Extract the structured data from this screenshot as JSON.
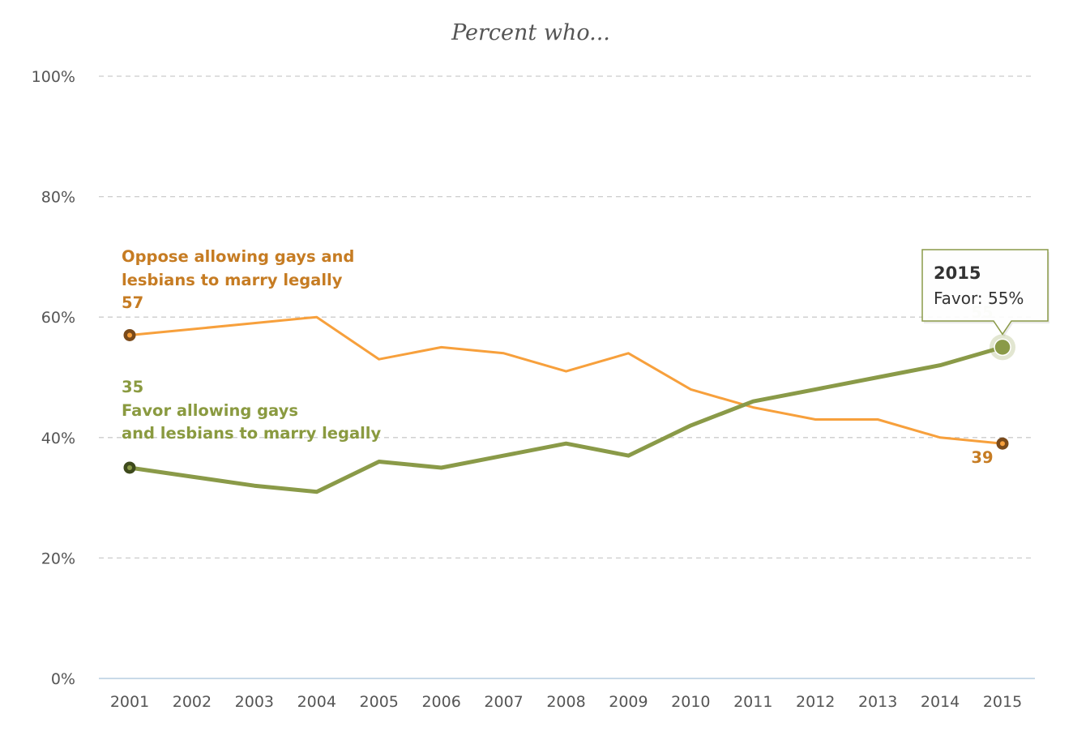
{
  "chart_data": {
    "type": "line",
    "title": "Percent who...",
    "x": [
      2001,
      2002,
      2003,
      2004,
      2005,
      2006,
      2007,
      2008,
      2009,
      2010,
      2011,
      2012,
      2013,
      2014,
      2015
    ],
    "x_tick_labels": [
      "2001",
      "2002",
      "2003",
      "2004",
      "2005",
      "2006",
      "2007",
      "2008",
      "2009",
      "2010",
      "2011",
      "2012",
      "2013",
      "2014",
      "2015"
    ],
    "y_tick_labels": [
      "0%",
      "20%",
      "40%",
      "60%",
      "80%",
      "100%"
    ],
    "ylim": [
      0,
      100
    ],
    "grid": true,
    "series": [
      {
        "name": "Oppose allowing gays and lesbians to marry legally",
        "label_lines": [
          "Oppose allowing gays and",
          "lesbians to marry legally"
        ],
        "color": "#f7a03c",
        "text_color": "#c67c23",
        "values": [
          57,
          58,
          59,
          60,
          53,
          55,
          54,
          51,
          54,
          48,
          45,
          43,
          43,
          40,
          39
        ],
        "start_label": "57",
        "end_label": "39"
      },
      {
        "name": "Favor allowing gays and lesbians to marry legally",
        "label_lines": [
          "Favor allowing gays",
          "and lesbians to marry legally"
        ],
        "color": "#8a9a48",
        "text_color": "#8a9a40",
        "values": [
          35,
          33.5,
          32,
          31,
          36,
          35,
          37,
          39,
          37,
          42,
          46,
          48,
          50,
          52,
          55
        ],
        "start_label": "35",
        "end_label": "55"
      }
    ],
    "tooltip": {
      "year": "2015",
      "text": "Favor: 55%"
    }
  }
}
